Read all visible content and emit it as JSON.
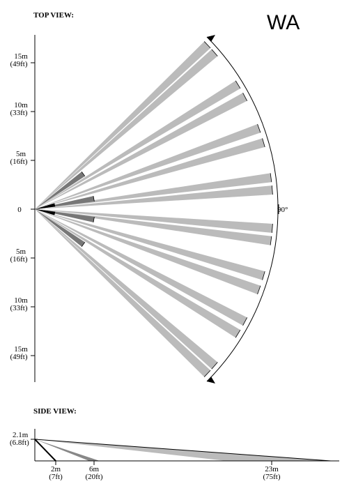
{
  "top_view": {
    "title": "TOP VIEW:",
    "label": "WA",
    "distances": [
      {
        "m": "15m",
        "ft": "(49ft)"
      },
      {
        "m": "10m",
        "ft": "(33ft)"
      },
      {
        "m": "5m",
        "ft": "(16ft)"
      },
      {
        "m": "0",
        "ft": null
      },
      {
        "m": "5m",
        "ft": "(16ft)"
      },
      {
        "m": "10m",
        "ft": "(33ft)"
      },
      {
        "m": "15m",
        "ft": "(49ft)"
      }
    ],
    "angle": "90°"
  },
  "side_view": {
    "title": "SIDE VIEW:",
    "height": {
      "m": "2.1m",
      "ft": "(6.8ft)"
    },
    "distances": [
      {
        "m": "2m",
        "ft": "(7ft)"
      },
      {
        "m": "6m",
        "ft": "(20ft)"
      },
      {
        "m": "23m",
        "ft": "(75ft)"
      }
    ]
  }
}
